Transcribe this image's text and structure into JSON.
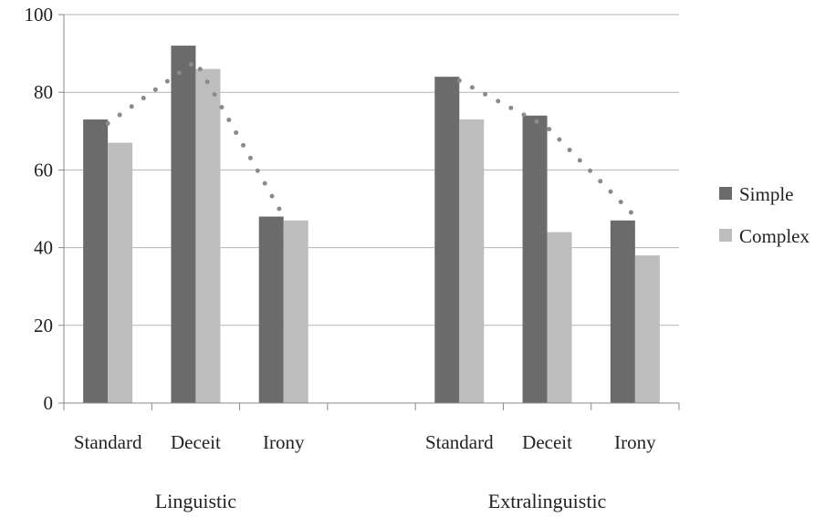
{
  "chart_data": {
    "type": "bar",
    "groups": [
      {
        "name": "Linguistic",
        "categories": [
          "Standard",
          "Deceit",
          "Irony"
        ]
      },
      {
        "name": "Extralinguistic",
        "categories": [
          "Standard",
          "Deceit",
          "Irony"
        ]
      }
    ],
    "series": [
      {
        "name": "Simple",
        "color": "#6b6b6b",
        "values": [
          [
            73,
            92,
            48
          ],
          [
            84,
            74,
            47
          ]
        ]
      },
      {
        "name": "Complex",
        "color": "#bdbdbd",
        "values": [
          [
            67,
            86,
            47
          ],
          [
            73,
            44,
            38
          ]
        ]
      }
    ],
    "trend_lines": [
      {
        "style": "dotted",
        "color": "#8a8a8a",
        "values": [
          [
            72,
            88,
            48
          ],
          [
            83,
            71,
            48
          ]
        ]
      }
    ],
    "ylim": [
      0,
      100
    ],
    "yticks": [
      0,
      20,
      40,
      60,
      80,
      100
    ],
    "grid": true,
    "legend": "right",
    "title": "",
    "xlabel": "",
    "ylabel": ""
  }
}
